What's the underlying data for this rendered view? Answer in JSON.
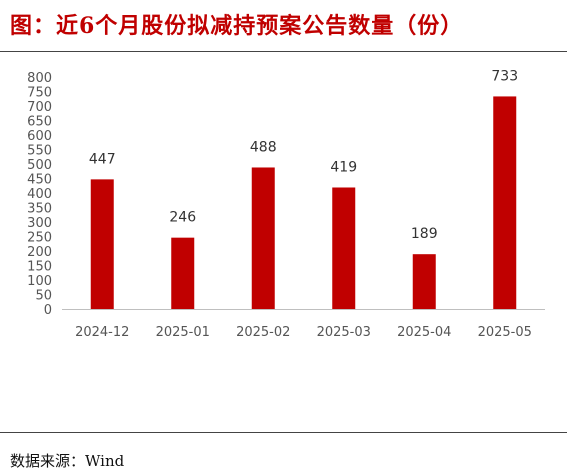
{
  "title": "图：近6个月股份拟减持预案公告数量（份）",
  "source": "数据来源：Wind",
  "chart_data": {
    "type": "bar",
    "categories": [
      "2024-12",
      "2025-01",
      "2025-02",
      "2025-03",
      "2025-04",
      "2025-05"
    ],
    "values": [
      447,
      246,
      488,
      419,
      189,
      733
    ],
    "ylim": [
      0,
      800
    ],
    "yticks": [
      0,
      50,
      100,
      150,
      200,
      250,
      300,
      350,
      400,
      450,
      500,
      550,
      600,
      650,
      700,
      750,
      800
    ],
    "bar_color": "#c00000",
    "grid": false,
    "legend": "none"
  }
}
